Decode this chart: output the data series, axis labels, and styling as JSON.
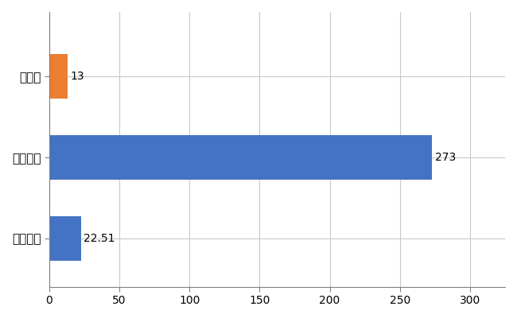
{
  "categories": [
    "全国平均",
    "全国最大",
    "長野県"
  ],
  "values": [
    22.51,
    273,
    13
  ],
  "bar_colors": [
    "#4472c4",
    "#4472c4",
    "#ed7d31"
  ],
  "value_labels": [
    "22.51",
    "273",
    "13"
  ],
  "xlim": [
    0,
    325
  ],
  "xticks": [
    0,
    50,
    100,
    150,
    200,
    250,
    300
  ],
  "grid_color": "#c8c8c8",
  "background_color": "#ffffff",
  "bar_height": 0.55,
  "label_fontsize": 11,
  "tick_fontsize": 10,
  "value_fontsize": 10
}
